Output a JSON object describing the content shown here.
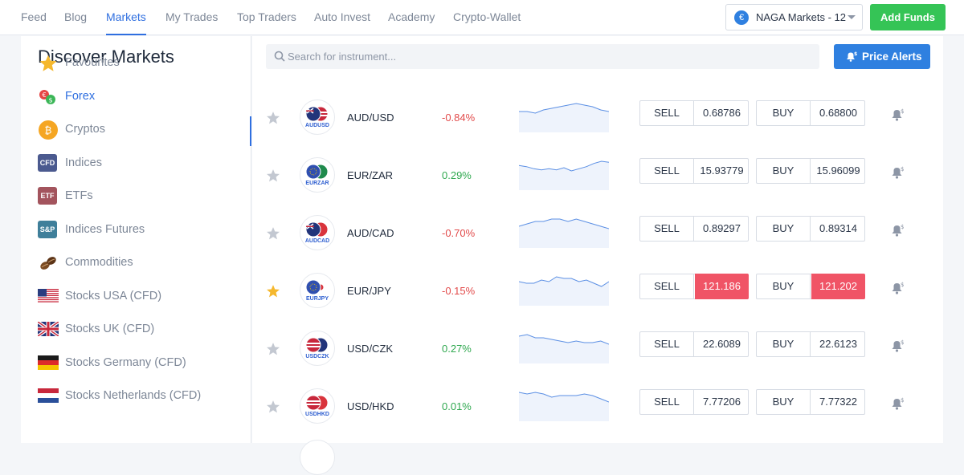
{
  "nav": {
    "items": [
      {
        "label": "Feed",
        "active": false
      },
      {
        "label": "Blog",
        "active": false
      },
      {
        "label": "Markets",
        "active": true
      },
      {
        "label": "My Trades",
        "active": false
      },
      {
        "label": "Top Traders",
        "active": false
      },
      {
        "label": "Auto Invest",
        "active": false
      },
      {
        "label": "Academy",
        "active": false
      },
      {
        "label": "Crypto-Wallet",
        "active": false
      }
    ],
    "account_label": "NAGA Markets - 12",
    "account_currency_symbol": "€",
    "add_funds_label": "Add Funds"
  },
  "sidebar": {
    "title": "Discover Markets",
    "items": [
      {
        "label": "Favourites",
        "icon": "star-icon"
      },
      {
        "label": "Forex",
        "icon": "forex-icon",
        "active": true
      },
      {
        "label": "Cryptos",
        "icon": "bitcoin-icon",
        "badge": "₿"
      },
      {
        "label": "Indices",
        "icon": "cfd-icon",
        "badge": "CFD"
      },
      {
        "label": "ETFs",
        "icon": "etf-icon",
        "badge": "ETF"
      },
      {
        "label": "Indices Futures",
        "icon": "sp-icon",
        "badge": "S&P"
      },
      {
        "label": "Commodities",
        "icon": "coffee-beans-icon"
      },
      {
        "label": "Stocks USA (CFD)",
        "icon": "usa-flag-icon"
      },
      {
        "label": "Stocks UK (CFD)",
        "icon": "uk-flag-icon"
      },
      {
        "label": "Stocks Germany (CFD)",
        "icon": "germany-flag-icon"
      },
      {
        "label": "Stocks Netherlands (CFD)",
        "icon": "netherlands-flag-icon"
      }
    ]
  },
  "search": {
    "placeholder": "Search for instrument..."
  },
  "price_alerts_label": "Price Alerts",
  "colors": {
    "accent": "#2f6fe0",
    "buy_sell_highlight": "#f05466",
    "positive": "#2fa84f",
    "negative": "#e24b4b",
    "add_funds": "#35c456"
  },
  "instruments": [
    {
      "code": "AUDUSD",
      "name": "AUD/USD",
      "change": "-0.84%",
      "direction": "neg",
      "favourite": false,
      "sell_label": "SELL",
      "sell": "0.68786",
      "buy_label": "BUY",
      "buy": "0.68800",
      "highlight": false,
      "spark": [
        6,
        6,
        7,
        5,
        4,
        3,
        2,
        1,
        2,
        3,
        5,
        6
      ]
    },
    {
      "code": "EURZAR",
      "name": "EUR/ZAR",
      "change": "0.29%",
      "direction": "pos",
      "favourite": false,
      "sell_label": "SELL",
      "sell": "15.93779",
      "buy_label": "BUY",
      "buy": "15.96099",
      "highlight": false,
      "spark": [
        5,
        6,
        8,
        9,
        8,
        9,
        7,
        10,
        8,
        6,
        3,
        1,
        2
      ]
    },
    {
      "code": "AUDCAD",
      "name": "AUD/CAD",
      "change": "-0.70%",
      "direction": "neg",
      "favourite": false,
      "sell_label": "SELL",
      "sell": "0.89297",
      "buy_label": "BUY",
      "buy": "0.89314",
      "highlight": false,
      "spark": [
        5,
        4,
        3,
        3,
        2,
        2,
        3,
        2,
        3,
        4,
        5,
        6
      ]
    },
    {
      "code": "EURJPY",
      "name": "EUR/JPY",
      "change": "-0.15%",
      "direction": "neg",
      "favourite": true,
      "sell_label": "SELL",
      "sell": "121.186",
      "buy_label": "BUY",
      "buy": "121.202",
      "highlight": true,
      "spark": [
        5,
        6,
        6,
        4,
        5,
        2,
        3,
        3,
        5,
        4,
        6,
        8,
        5
      ]
    },
    {
      "code": "USDCZK",
      "name": "USD/CZK",
      "change": "0.27%",
      "direction": "pos",
      "favourite": false,
      "sell_label": "SELL",
      "sell": "22.6089",
      "buy_label": "BUY",
      "buy": "22.6123",
      "highlight": false,
      "spark": [
        3,
        2,
        4,
        4,
        5,
        6,
        7,
        6,
        7,
        7,
        6,
        8
      ]
    },
    {
      "code": "USDHKD",
      "name": "USD/HKD",
      "change": "0.01%",
      "direction": "pos",
      "favourite": false,
      "sell_label": "SELL",
      "sell": "7.77206",
      "buy_label": "BUY",
      "buy": "7.77322",
      "highlight": false,
      "spark": [
        2,
        3,
        2,
        3,
        5,
        4,
        4,
        4,
        3,
        4,
        6,
        8
      ]
    }
  ]
}
